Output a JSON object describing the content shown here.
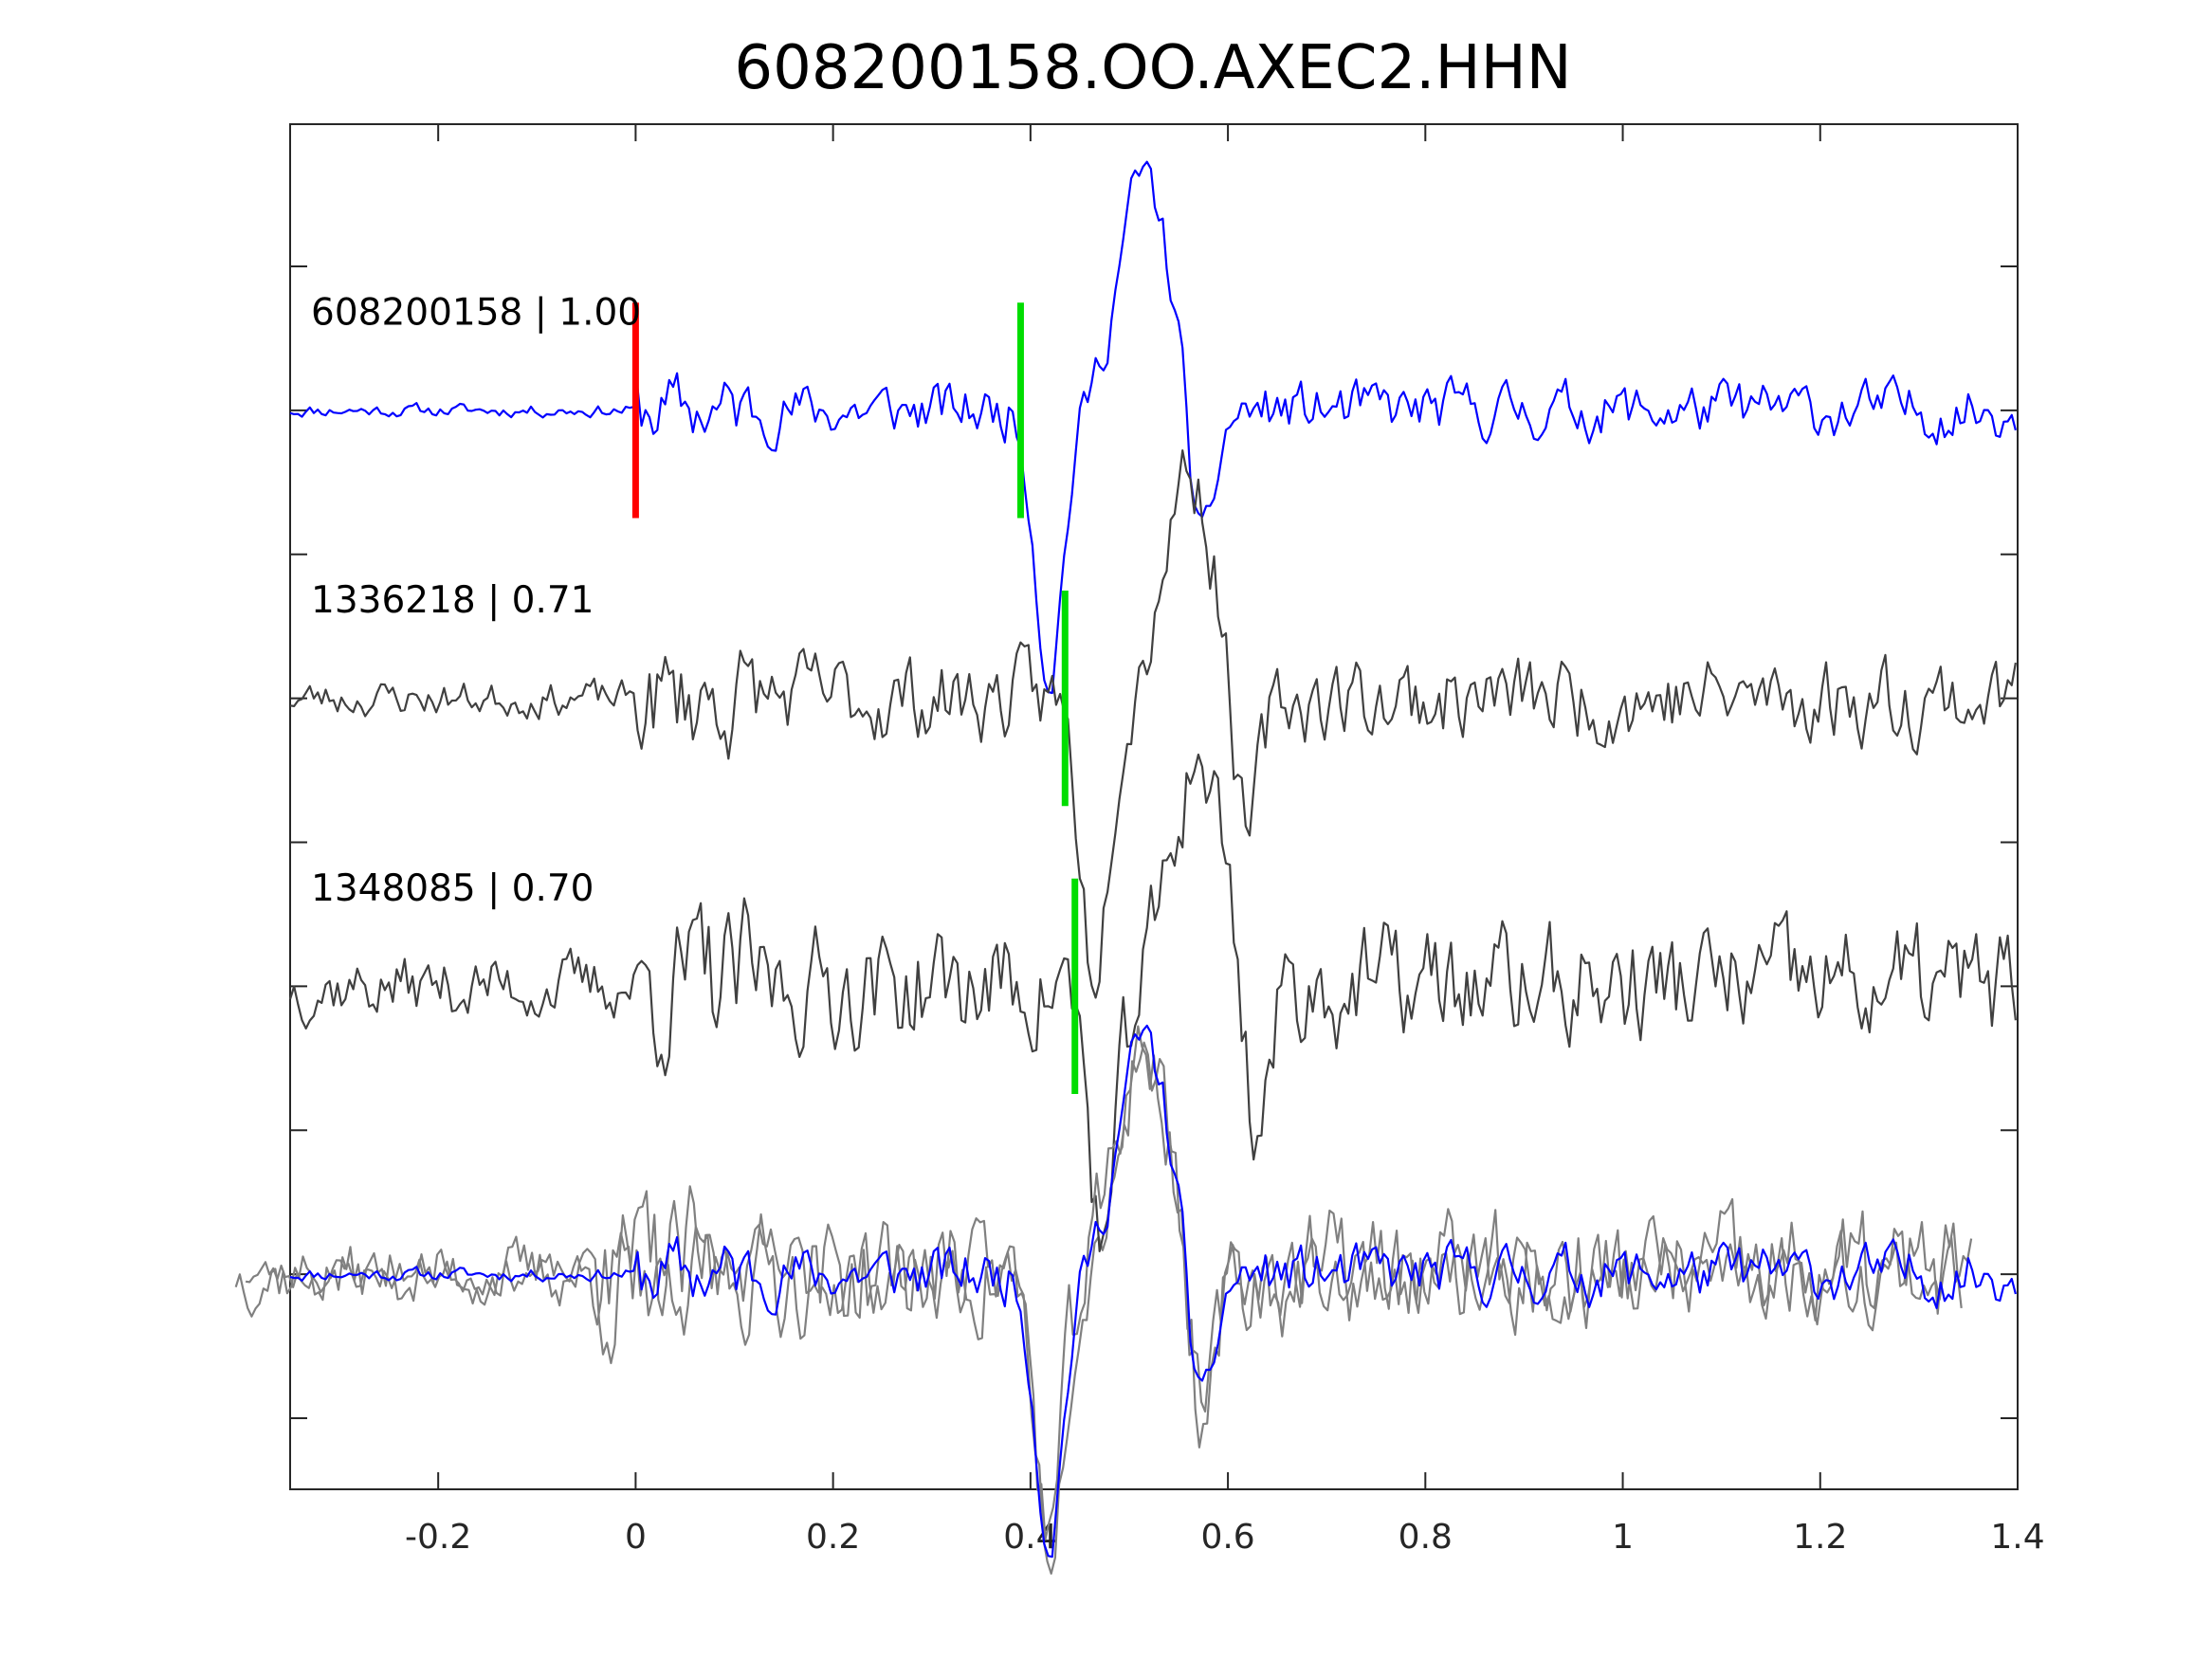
{
  "chart_data": {
    "type": "line",
    "title": "608200158.OO.AXEC2.HHN",
    "xlabel": "",
    "ylabel": "",
    "xlim": [
      -0.35,
      1.4
    ],
    "xticks": [
      -0.2,
      0,
      0.2,
      0.4,
      0.6,
      0.8,
      1,
      1.2,
      1.4
    ],
    "xtick_labels": [
      "-0.2",
      "0",
      "0.2",
      "0.4",
      "0.6",
      "0.8",
      "1",
      "1.2",
      "1.4"
    ],
    "yticks_count": 9,
    "ytick_labels_visible": false,
    "grid": false,
    "colors": {
      "reference_trace": "#0000ff",
      "template_trace": "#404040",
      "overlay_template_trace": "#808080",
      "reference_pick": "#ff0000",
      "template_pick": "#00dd00"
    },
    "traces": [
      {
        "label": "608200158 | 1.00",
        "id": "608200158",
        "cc": 1.0,
        "row": 1,
        "color": "#0000ff",
        "pick_time": 0.39,
        "origin_pick_time": 0.0,
        "seed": 11,
        "noise_pre": 0.08,
        "noise_post": 0.35
      },
      {
        "label": "1336218 | 0.71",
        "id": "1336218",
        "cc": 0.71,
        "row": 2,
        "color": "#404040",
        "pick_time": 0.435,
        "seed": 23,
        "noise_pre": 0.22,
        "noise_post": 0.55
      },
      {
        "label": "1348085 | 0.70",
        "id": "1348085",
        "cc": 0.7,
        "row": 3,
        "color": "#404040",
        "pick_time": 0.445,
        "seed": 37,
        "noise_pre": 0.4,
        "noise_post": 0.75
      }
    ],
    "overlay_row": 4,
    "sample_interval_s": 0.004
  }
}
